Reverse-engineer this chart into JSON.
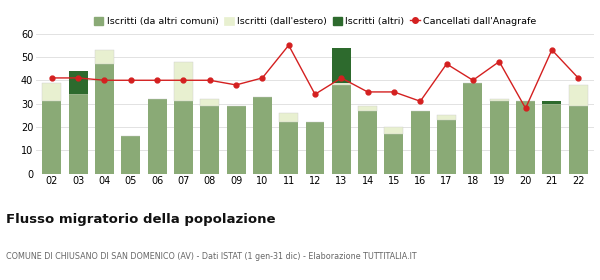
{
  "years": [
    "02",
    "03",
    "04",
    "05",
    "06",
    "07",
    "08",
    "09",
    "10",
    "11",
    "12",
    "13",
    "14",
    "15",
    "16",
    "17",
    "18",
    "19",
    "20",
    "21",
    "22"
  ],
  "iscritti_altri_comuni": [
    31,
    34,
    47,
    16,
    32,
    31,
    29,
    29,
    33,
    22,
    22,
    38,
    27,
    17,
    27,
    23,
    39,
    31,
    31,
    30,
    29
  ],
  "iscritti_estero": [
    8,
    0,
    6,
    0,
    0,
    17,
    3,
    0,
    0,
    4,
    0,
    1,
    2,
    3,
    0,
    2,
    0,
    1,
    0,
    0,
    9
  ],
  "iscritti_altri": [
    0,
    10,
    0,
    0,
    0,
    0,
    0,
    0,
    0,
    0,
    0,
    15,
    0,
    0,
    0,
    0,
    0,
    0,
    0,
    1,
    0
  ],
  "cancellati": [
    41,
    41,
    40,
    40,
    40,
    40,
    40,
    38,
    41,
    55,
    34,
    41,
    35,
    35,
    31,
    47,
    40,
    48,
    28,
    53,
    41
  ],
  "color_comuni": "#8aaa76",
  "color_estero": "#e8f0d0",
  "color_altri": "#2d6a2d",
  "color_cancellati": "#d42020",
  "title": "Flusso migratorio della popolazione",
  "subtitle": "COMUNE DI CHIUSANO DI SAN DOMENICO (AV) - Dati ISTAT (1 gen-31 dic) - Elaborazione TUTTITALIA.IT",
  "ylim": [
    0,
    60
  ],
  "yticks": [
    0,
    10,
    20,
    30,
    40,
    50,
    60
  ],
  "legend_labels": [
    "Iscritti (da altri comuni)",
    "Iscritti (dall'estero)",
    "Iscritti (altri)",
    "Cancellati dall'Anagrafe"
  ],
  "background_color": "#ffffff",
  "grid_color": "#dddddd",
  "bar_width": 0.72
}
